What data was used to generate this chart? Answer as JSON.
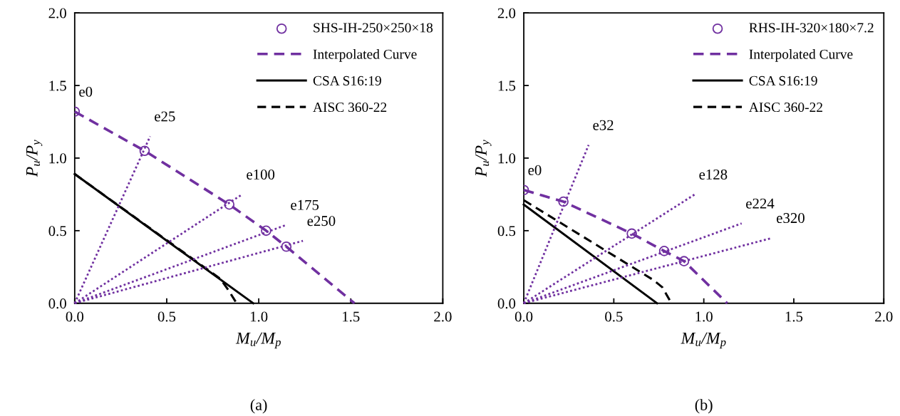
{
  "chart_data": [
    {
      "type": "line",
      "xlabel": "M$_{u}$/M$_{p}$",
      "ylabel": "P$_{u}$/P$_{y}$",
      "xlim": [
        0,
        2
      ],
      "ylim": [
        0,
        2
      ],
      "xticks": [
        {
          "value": 0,
          "label": "0.0"
        },
        {
          "value": 0.5,
          "label": "0.5"
        },
        {
          "value": 1,
          "label": "1.0"
        },
        {
          "value": 1.5,
          "label": "1.5"
        },
        {
          "value": 2,
          "label": "2.0"
        }
      ],
      "yticks": [
        {
          "value": 0,
          "label": "0.0"
        },
        {
          "value": 0.5,
          "label": "0.5"
        },
        {
          "value": 1,
          "label": "1.0"
        },
        {
          "value": 1.5,
          "label": "1.5"
        },
        {
          "value": 2,
          "label": "2.0"
        }
      ],
      "grid": false,
      "legend": "top right",
      "series": [
        {
          "type": "scatter",
          "name": "SHS-IH-250×250×18",
          "color": "#7030a0",
          "marker": "circle",
          "x": [
            0,
            0.38,
            0.84,
            1.04,
            1.15
          ],
          "values": [
            1.32,
            1.05,
            0.68,
            0.5,
            0.39
          ]
        },
        {
          "name": "Interpolated Curve",
          "color": "#7030a0",
          "line_style": "dashed",
          "x": [
            0,
            0.38,
            0.84,
            1.04,
            1.15,
            1.52
          ],
          "values": [
            1.32,
            1.05,
            0.68,
            0.5,
            0.39,
            0
          ]
        },
        {
          "name": "CSA S16:19",
          "color": "#000000",
          "line_style": "solid",
          "x": [
            0,
            0.97
          ],
          "values": [
            0.89,
            0
          ]
        },
        {
          "name": "AISC 360-22",
          "color": "#000000",
          "line_style": "dashed",
          "x": [
            0,
            0.79,
            0.83,
            0.88
          ],
          "values": [
            0.89,
            0.17,
            0.1,
            0
          ]
        },
        {
          "color": "#7030a0",
          "line_style": "dotted",
          "x": [
            0,
            0.41
          ],
          "values": [
            0,
            1.15
          ]
        },
        {
          "color": "#7030a0",
          "line_style": "dotted",
          "x": [
            0,
            0.91
          ],
          "values": [
            0,
            0.75
          ]
        },
        {
          "color": "#7030a0",
          "line_style": "dotted",
          "x": [
            0,
            1.15
          ],
          "values": [
            0,
            0.54
          ]
        },
        {
          "color": "#7030a0",
          "line_style": "dotted",
          "x": [
            0,
            1.24
          ],
          "values": [
            0,
            0.43
          ]
        }
      ],
      "annotations": [
        {
          "text": "e0",
          "x": 0,
          "y": 1.32
        },
        {
          "text": "e25",
          "x": 0.41,
          "y": 1.15
        },
        {
          "text": "e100",
          "x": 0.91,
          "y": 0.75
        },
        {
          "text": "e175",
          "x": 1.15,
          "y": 0.54
        },
        {
          "text": "e250",
          "x": 1.24,
          "y": 0.43
        },
        "(a)"
      ]
    },
    {
      "type": "line",
      "xlabel": "M$_{u}$/M$_{p}$",
      "ylabel": "P$_{u}$/P$_{y}$",
      "xlim": [
        0,
        2
      ],
      "ylim": [
        0,
        2
      ],
      "xticks": [
        {
          "value": 0,
          "label": "0.0"
        },
        {
          "value": 0.5,
          "label": "0.5"
        },
        {
          "value": 1,
          "label": "1.0"
        },
        {
          "value": 1.5,
          "label": "1.5"
        },
        {
          "value": 2,
          "label": "2.0"
        }
      ],
      "yticks": [
        {
          "value": 0,
          "label": "0.0"
        },
        {
          "value": 0.5,
          "label": "0.5"
        },
        {
          "value": 1,
          "label": "1.0"
        },
        {
          "value": 1.5,
          "label": "1.5"
        },
        {
          "value": 2,
          "label": "2.0"
        }
      ],
      "grid": false,
      "legend": "top right",
      "series": [
        {
          "type": "scatter",
          "name": "RHS-IH-320×180×7.2",
          "color": "#7030a0",
          "marker": "circle",
          "x": [
            0,
            0.22,
            0.6,
            0.78,
            0.89
          ],
          "values": [
            0.78,
            0.7,
            0.48,
            0.36,
            0.29
          ]
        },
        {
          "name": "Interpolated Curve",
          "color": "#7030a0",
          "line_style": "dashed",
          "x": [
            0,
            0.22,
            0.6,
            0.78,
            0.89,
            1.13
          ],
          "values": [
            0.78,
            0.7,
            0.48,
            0.36,
            0.29,
            0
          ]
        },
        {
          "name": "CSA S16:19",
          "color": "#000000",
          "line_style": "solid",
          "x": [
            0,
            0.74
          ],
          "values": [
            0.68,
            0
          ]
        },
        {
          "name": "AISC 360-22",
          "color": "#000000",
          "line_style": "dashed",
          "x": [
            0,
            0.72,
            0.77,
            0.82
          ],
          "values": [
            0.71,
            0.16,
            0.11,
            0
          ]
        },
        {
          "color": "#7030a0",
          "line_style": "dotted",
          "x": [
            0,
            0.36
          ],
          "values": [
            0,
            1.09
          ]
        },
        {
          "color": "#7030a0",
          "line_style": "dotted",
          "x": [
            0,
            0.95
          ],
          "values": [
            0,
            0.75
          ]
        },
        {
          "color": "#7030a0",
          "line_style": "dotted",
          "x": [
            0,
            1.21
          ],
          "values": [
            0,
            0.55
          ]
        },
        {
          "color": "#7030a0",
          "line_style": "dotted",
          "x": [
            0,
            1.38
          ],
          "values": [
            0,
            0.45
          ]
        }
      ],
      "annotations": [
        {
          "text": "e0",
          "x": 0,
          "y": 0.78
        },
        {
          "text": "e32",
          "x": 0.36,
          "y": 1.09
        },
        {
          "text": "e128",
          "x": 0.95,
          "y": 0.75
        },
        {
          "text": "e224",
          "x": 1.21,
          "y": 0.55
        },
        {
          "text": "e320",
          "x": 1.38,
          "y": 0.45
        },
        "(b)"
      ]
    }
  ]
}
